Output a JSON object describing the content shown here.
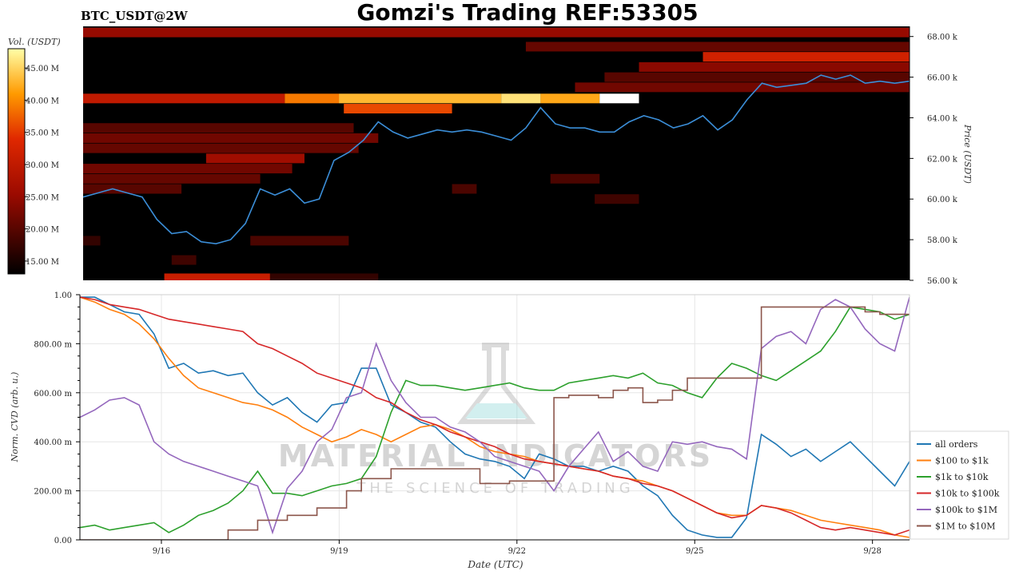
{
  "header": {
    "symbol": "BTC_USDT@2W",
    "title": "Gomzi's Trading REF:53305"
  },
  "watermark": {
    "line1": "MATERIAL INDICATORS",
    "line2": "THE SCIENCE OF TRADING"
  },
  "colors": {
    "price_line": "#3b8ed8",
    "heat_dark": "#000000",
    "heat_mid": "#cc1400",
    "heat_bright": "#ffd200",
    "heat_max": "#ffffff"
  },
  "chart_data": [
    {
      "type": "heatmap",
      "title": "Gomzi's Trading REF:53305",
      "colorbar_label": "Vol. (USDT)",
      "colorbar_ticks": [
        "15.00 M",
        "20.00 M",
        "25.00 M",
        "30.00 M",
        "35.00 M",
        "40.00 M",
        "45.00 M"
      ],
      "colorbar_range": [
        13,
        48
      ],
      "ylabel": "Price (USDT)",
      "ylim": [
        56000,
        68500
      ],
      "yticks": [
        56000,
        58000,
        60000,
        62000,
        64000,
        66000,
        68000
      ],
      "ytick_labels": [
        "56.00 k",
        "58.00 k",
        "60.00 k",
        "62.00 k",
        "64.00 k",
        "66.00 k",
        "68.00 k"
      ],
      "xlim": [
        "9/14 15:00",
        "9/28 15:00"
      ],
      "price_series": {
        "name": "price",
        "x_hours": [
          0,
          6,
          12,
          18,
          24,
          30,
          36,
          42,
          48,
          54,
          60,
          66,
          72,
          78,
          84,
          90,
          96,
          102,
          108,
          114,
          120,
          126,
          132,
          138,
          144,
          150,
          156,
          162,
          168,
          174,
          180,
          186,
          192,
          198,
          204,
          210,
          216,
          222,
          228,
          234,
          240,
          246,
          252,
          258,
          264,
          270,
          276,
          282,
          288,
          294,
          300,
          306,
          312,
          318,
          324,
          330,
          336
        ],
        "y": [
          60100,
          60300,
          60500,
          60300,
          60100,
          59000,
          58300,
          58400,
          57900,
          57800,
          58000,
          58800,
          60500,
          60200,
          60500,
          59800,
          60000,
          61900,
          62300,
          62900,
          63800,
          63300,
          63000,
          63200,
          63400,
          63300,
          63400,
          63300,
          63100,
          62900,
          63500,
          64500,
          63700,
          63500,
          63500,
          63300,
          63300,
          63800,
          64100,
          63900,
          63500,
          63700,
          64100,
          63400,
          63900,
          64900,
          65700,
          65500,
          65600,
          65700,
          66100,
          65900,
          66100,
          65700,
          65800,
          65700,
          65800
        ]
      },
      "bands": [
        {
          "price": 64950,
          "volume": 30,
          "from_h": 0,
          "to_h": 82
        },
        {
          "price": 64950,
          "volume": 39,
          "from_h": 82,
          "to_h": 104
        },
        {
          "price": 64950,
          "volume": 43,
          "from_h": 104,
          "to_h": 170
        },
        {
          "price": 64950,
          "volume": 46,
          "from_h": 170,
          "to_h": 186
        },
        {
          "price": 64950,
          "volume": 42,
          "from_h": 186,
          "to_h": 210
        },
        {
          "price": 64950,
          "volume": 48,
          "from_h": 210,
          "to_h": 226
        },
        {
          "price": 64450,
          "volume": 36,
          "from_h": 106,
          "to_h": 150
        },
        {
          "price": 65500,
          "volume": 22,
          "from_h": 200,
          "to_h": 336
        },
        {
          "price": 66000,
          "volume": 20,
          "from_h": 212,
          "to_h": 336
        },
        {
          "price": 66500,
          "volume": 24,
          "from_h": 226,
          "to_h": 336
        },
        {
          "price": 67000,
          "volume": 32,
          "from_h": 252,
          "to_h": 336
        },
        {
          "price": 67500,
          "volume": 21,
          "from_h": 180,
          "to_h": 336
        },
        {
          "price": 68200,
          "volume": 25,
          "from_h": 0,
          "to_h": 336
        },
        {
          "price": 63500,
          "volume": 20,
          "from_h": 0,
          "to_h": 110
        },
        {
          "price": 63000,
          "volume": 22,
          "from_h": 0,
          "to_h": 120
        },
        {
          "price": 62500,
          "volume": 21,
          "from_h": 0,
          "to_h": 112
        },
        {
          "price": 62000,
          "volume": 26,
          "from_h": 50,
          "to_h": 90
        },
        {
          "price": 61500,
          "volume": 22,
          "from_h": 0,
          "to_h": 85
        },
        {
          "price": 61000,
          "volume": 21,
          "from_h": 0,
          "to_h": 72
        },
        {
          "price": 60500,
          "volume": 20,
          "from_h": 0,
          "to_h": 40
        },
        {
          "price": 61000,
          "volume": 19,
          "from_h": 190,
          "to_h": 210
        },
        {
          "price": 60500,
          "volume": 19,
          "from_h": 150,
          "to_h": 160
        },
        {
          "price": 60000,
          "volume": 18,
          "from_h": 208,
          "to_h": 226
        },
        {
          "price": 57950,
          "volume": 19,
          "from_h": 68,
          "to_h": 108
        },
        {
          "price": 57950,
          "volume": 17,
          "from_h": 0,
          "to_h": 7
        },
        {
          "price": 57000,
          "volume": 18,
          "from_h": 36,
          "to_h": 46
        },
        {
          "price": 56100,
          "volume": 31,
          "from_h": 33,
          "to_h": 76
        },
        {
          "price": 56100,
          "volume": 17,
          "from_h": 76,
          "to_h": 120
        }
      ]
    },
    {
      "type": "line",
      "xlabel": "Date (UTC)",
      "ylabel": "Norm. CVD (arb. u.)",
      "ylim": [
        0,
        1
      ],
      "yticks": [
        0,
        0.2,
        0.4,
        0.6,
        0.8,
        1.0
      ],
      "ytick_labels": [
        "0.00",
        "200.00 m",
        "400.00 m",
        "600.00 m",
        "800.00 m",
        "1.00"
      ],
      "xlim_hours": [
        0,
        336
      ],
      "xtick_hours": [
        33,
        105,
        177,
        249,
        321
      ],
      "xtick_labels": [
        "9/16",
        "9/19",
        "9/22",
        "9/25",
        "9/28"
      ],
      "legend_position": "lower-right",
      "series": [
        {
          "name": "all orders",
          "color": "#1f77b4",
          "x_hours": [
            0,
            6,
            12,
            18,
            24,
            30,
            36,
            42,
            48,
            54,
            60,
            66,
            72,
            78,
            84,
            90,
            96,
            102,
            108,
            114,
            120,
            126,
            132,
            138,
            144,
            150,
            156,
            162,
            168,
            174,
            180,
            186,
            192,
            198,
            204,
            210,
            216,
            222,
            228,
            234,
            240,
            246,
            252,
            258,
            264,
            270,
            276,
            282,
            288,
            294,
            300,
            306,
            312,
            318,
            324,
            330,
            336
          ],
          "y": [
            0.99,
            0.99,
            0.96,
            0.93,
            0.92,
            0.84,
            0.7,
            0.72,
            0.68,
            0.69,
            0.67,
            0.68,
            0.6,
            0.55,
            0.58,
            0.52,
            0.48,
            0.55,
            0.56,
            0.7,
            0.7,
            0.55,
            0.52,
            0.48,
            0.46,
            0.4,
            0.35,
            0.33,
            0.32,
            0.3,
            0.25,
            0.35,
            0.33,
            0.3,
            0.3,
            0.28,
            0.3,
            0.28,
            0.22,
            0.18,
            0.1,
            0.04,
            0.02,
            0.01,
            0.01,
            0.09,
            0.43,
            0.39,
            0.34,
            0.37,
            0.32,
            0.36,
            0.4,
            0.34,
            0.28,
            0.22,
            0.32
          ]
        },
        {
          "name": "$100 to $1k",
          "color": "#ff7f0e",
          "x_hours": [
            0,
            6,
            12,
            18,
            24,
            30,
            36,
            42,
            48,
            54,
            60,
            66,
            72,
            78,
            84,
            90,
            96,
            102,
            108,
            114,
            120,
            126,
            132,
            138,
            144,
            150,
            156,
            162,
            168,
            174,
            180,
            186,
            192,
            198,
            204,
            210,
            216,
            222,
            228,
            234,
            240,
            246,
            252,
            258,
            264,
            270,
            276,
            282,
            288,
            294,
            300,
            306,
            312,
            318,
            324,
            330,
            336
          ],
          "y": [
            0.99,
            0.97,
            0.94,
            0.92,
            0.88,
            0.82,
            0.74,
            0.67,
            0.62,
            0.6,
            0.58,
            0.56,
            0.55,
            0.53,
            0.5,
            0.46,
            0.43,
            0.4,
            0.42,
            0.45,
            0.43,
            0.4,
            0.43,
            0.46,
            0.47,
            0.45,
            0.42,
            0.38,
            0.36,
            0.35,
            0.34,
            0.32,
            0.31,
            0.3,
            0.29,
            0.28,
            0.26,
            0.25,
            0.24,
            0.22,
            0.2,
            0.17,
            0.14,
            0.11,
            0.1,
            0.1,
            0.14,
            0.13,
            0.12,
            0.1,
            0.08,
            0.07,
            0.06,
            0.05,
            0.04,
            0.02,
            0.01
          ]
        },
        {
          "name": "$1k to $10k",
          "color": "#2ca02c",
          "x_hours": [
            0,
            6,
            12,
            18,
            24,
            30,
            36,
            42,
            48,
            54,
            60,
            66,
            72,
            78,
            84,
            90,
            96,
            102,
            108,
            114,
            120,
            126,
            132,
            138,
            144,
            150,
            156,
            162,
            168,
            174,
            180,
            186,
            192,
            198,
            204,
            210,
            216,
            222,
            228,
            234,
            240,
            246,
            252,
            258,
            264,
            270,
            276,
            282,
            288,
            294,
            300,
            306,
            312,
            318,
            324,
            330,
            336
          ],
          "y": [
            0.05,
            0.06,
            0.04,
            0.05,
            0.06,
            0.07,
            0.03,
            0.06,
            0.1,
            0.12,
            0.15,
            0.2,
            0.28,
            0.19,
            0.19,
            0.18,
            0.2,
            0.22,
            0.23,
            0.25,
            0.34,
            0.52,
            0.65,
            0.63,
            0.63,
            0.62,
            0.61,
            0.62,
            0.63,
            0.64,
            0.62,
            0.61,
            0.61,
            0.64,
            0.65,
            0.66,
            0.67,
            0.66,
            0.68,
            0.64,
            0.63,
            0.6,
            0.58,
            0.66,
            0.72,
            0.7,
            0.67,
            0.65,
            0.69,
            0.73,
            0.77,
            0.85,
            0.95,
            0.94,
            0.93,
            0.9,
            0.92
          ]
        },
        {
          "name": "$10k to $100k",
          "color": "#d62728",
          "x_hours": [
            0,
            6,
            12,
            18,
            24,
            30,
            36,
            42,
            48,
            54,
            60,
            66,
            72,
            78,
            84,
            90,
            96,
            102,
            108,
            114,
            120,
            126,
            132,
            138,
            144,
            150,
            156,
            162,
            168,
            174,
            180,
            186,
            192,
            198,
            204,
            210,
            216,
            222,
            228,
            234,
            240,
            246,
            252,
            258,
            264,
            270,
            276,
            282,
            288,
            294,
            300,
            306,
            312,
            318,
            324,
            330,
            336
          ],
          "y": [
            0.99,
            0.98,
            0.96,
            0.95,
            0.94,
            0.92,
            0.9,
            0.89,
            0.88,
            0.87,
            0.86,
            0.85,
            0.8,
            0.78,
            0.75,
            0.72,
            0.68,
            0.66,
            0.64,
            0.62,
            0.58,
            0.56,
            0.52,
            0.49,
            0.47,
            0.44,
            0.42,
            0.4,
            0.38,
            0.35,
            0.33,
            0.32,
            0.31,
            0.3,
            0.29,
            0.28,
            0.26,
            0.25,
            0.23,
            0.22,
            0.2,
            0.17,
            0.14,
            0.11,
            0.09,
            0.1,
            0.14,
            0.13,
            0.11,
            0.08,
            0.05,
            0.04,
            0.05,
            0.04,
            0.03,
            0.02,
            0.04
          ]
        },
        {
          "name": "$100k to $1M",
          "color": "#9467bd",
          "x_hours": [
            0,
            6,
            12,
            18,
            24,
            30,
            36,
            42,
            48,
            54,
            60,
            66,
            72,
            78,
            84,
            90,
            96,
            102,
            108,
            114,
            120,
            126,
            132,
            138,
            144,
            150,
            156,
            162,
            168,
            174,
            180,
            186,
            192,
            198,
            204,
            210,
            216,
            222,
            228,
            234,
            240,
            246,
            252,
            258,
            264,
            270,
            276,
            282,
            288,
            294,
            300,
            306,
            312,
            318,
            324,
            330,
            336
          ],
          "y": [
            0.5,
            0.53,
            0.57,
            0.58,
            0.55,
            0.4,
            0.35,
            0.32,
            0.3,
            0.28,
            0.26,
            0.24,
            0.22,
            0.03,
            0.21,
            0.28,
            0.4,
            0.45,
            0.58,
            0.6,
            0.8,
            0.65,
            0.56,
            0.5,
            0.5,
            0.46,
            0.44,
            0.4,
            0.34,
            0.32,
            0.3,
            0.28,
            0.2,
            0.3,
            0.37,
            0.44,
            0.32,
            0.36,
            0.3,
            0.28,
            0.4,
            0.39,
            0.4,
            0.38,
            0.37,
            0.33,
            0.78,
            0.83,
            0.85,
            0.8,
            0.94,
            0.98,
            0.95,
            0.86,
            0.8,
            0.77,
            0.99
          ]
        },
        {
          "name": "$1M to $10M",
          "color": "#8c564b",
          "x_hours": [
            0,
            12,
            24,
            30,
            36,
            42,
            48,
            54,
            60,
            72,
            84,
            96,
            108,
            114,
            126,
            138,
            150,
            162,
            174,
            186,
            192,
            198,
            204,
            210,
            216,
            222,
            228,
            234,
            240,
            246,
            252,
            258,
            264,
            270,
            276,
            282,
            288,
            294,
            300,
            306,
            312,
            318,
            324,
            330,
            336
          ],
          "y": [
            0.0,
            0.0,
            0.0,
            0.0,
            0.0,
            0.0,
            0.0,
            0.0,
            0.04,
            0.08,
            0.1,
            0.13,
            0.2,
            0.25,
            0.29,
            0.29,
            0.29,
            0.23,
            0.24,
            0.24,
            0.58,
            0.59,
            0.59,
            0.58,
            0.61,
            0.62,
            0.56,
            0.57,
            0.61,
            0.66,
            0.66,
            0.66,
            0.66,
            0.66,
            0.95,
            0.95,
            0.95,
            0.95,
            0.95,
            0.95,
            0.95,
            0.93,
            0.92,
            0.92,
            0.92
          ]
        }
      ]
    }
  ]
}
